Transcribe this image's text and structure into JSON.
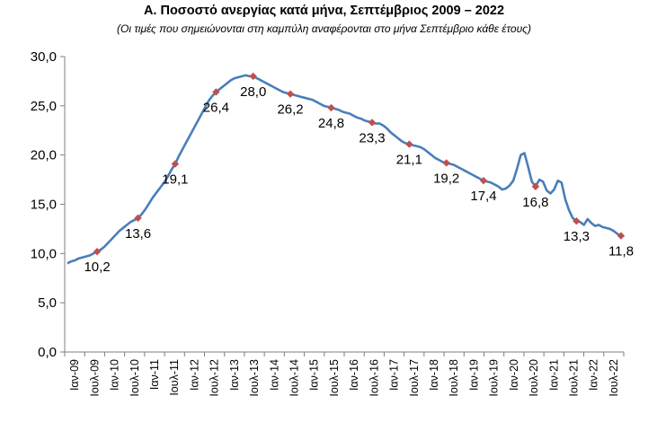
{
  "chart_data": {
    "type": "line",
    "title": "Α. Ποσοστό ανεργίας κατά μήνα, Σεπτέμβριος 2009 – 2022",
    "subtitle": "(Οι τιμές που σημειώνονται στη καμπύλη αναφέρονται στο μήνα Σεπτέμβριο κάθε έτους)",
    "xlabel": "",
    "ylabel": "",
    "ylim": [
      0,
      30
    ],
    "yticks": [
      "0,0",
      "5,0",
      "10,0",
      "15,0",
      "20,0",
      "25,0",
      "30,0"
    ],
    "grid": false,
    "xticks": [
      "Ιαν-09",
      "Ιουλ-09",
      "Ιαν-10",
      "Ιουλ-10",
      "Ιαν-11",
      "Ιουλ-11",
      "Ιαν-12",
      "Ιουλ-12",
      "Ιαν-13",
      "Ιουλ-13",
      "Ιαν-14",
      "Ιουλ-14",
      "Ιαν-15",
      "Ιουλ-15",
      "Ιαν-16",
      "Ιουλ-16",
      "Ιαν-17",
      "Ιουλ-17",
      "Ιαν-18",
      "Ιουλ-18",
      "Ιαν-19",
      "Ιουλ-19",
      "Ιαν-20",
      "Ιουλ-20",
      "Ιαν-21",
      "Ιουλ-21",
      "Ιαν-22",
      "Ιουλ-22"
    ],
    "series": [
      {
        "color": "#4a7ebb",
        "points": [
          [
            0,
            9.0
          ],
          [
            1,
            9.2
          ],
          [
            2,
            9.3
          ],
          [
            3,
            9.5
          ],
          [
            4,
            9.6
          ],
          [
            5,
            9.7
          ],
          [
            6,
            9.8
          ],
          [
            7,
            10.0
          ],
          [
            8,
            10.2
          ],
          [
            9,
            10.4
          ],
          [
            10,
            10.7
          ],
          [
            11,
            11.1
          ],
          [
            12,
            11.5
          ],
          [
            13,
            11.9
          ],
          [
            14,
            12.3
          ],
          [
            15,
            12.6
          ],
          [
            16,
            12.9
          ],
          [
            17,
            13.2
          ],
          [
            18,
            13.4
          ],
          [
            19,
            13.6
          ],
          [
            20,
            14.0
          ],
          [
            21,
            14.5
          ],
          [
            22,
            15.1
          ],
          [
            23,
            15.7
          ],
          [
            24,
            16.2
          ],
          [
            25,
            16.7
          ],
          [
            26,
            17.2
          ],
          [
            27,
            17.8
          ],
          [
            28,
            18.5
          ],
          [
            29,
            19.1
          ],
          [
            30,
            19.9
          ],
          [
            31,
            20.6
          ],
          [
            32,
            21.3
          ],
          [
            33,
            22.0
          ],
          [
            34,
            22.7
          ],
          [
            35,
            23.4
          ],
          [
            36,
            24.1
          ],
          [
            37,
            24.8
          ],
          [
            38,
            25.5
          ],
          [
            39,
            26.0
          ],
          [
            40,
            26.4
          ],
          [
            41,
            26.7
          ],
          [
            42,
            27.0
          ],
          [
            43,
            27.3
          ],
          [
            44,
            27.6
          ],
          [
            45,
            27.8
          ],
          [
            46,
            27.9
          ],
          [
            47,
            28.0
          ],
          [
            48,
            28.1
          ],
          [
            49,
            28.0
          ],
          [
            50,
            28.0
          ],
          [
            51,
            27.8
          ],
          [
            52,
            27.6
          ],
          [
            53,
            27.4
          ],
          [
            54,
            27.2
          ],
          [
            55,
            27.0
          ],
          [
            56,
            26.8
          ],
          [
            57,
            26.6
          ],
          [
            58,
            26.4
          ],
          [
            59,
            26.3
          ],
          [
            60,
            26.2
          ],
          [
            61,
            26.1
          ],
          [
            62,
            26.0
          ],
          [
            63,
            25.9
          ],
          [
            64,
            25.8
          ],
          [
            65,
            25.7
          ],
          [
            66,
            25.6
          ],
          [
            67,
            25.4
          ],
          [
            68,
            25.2
          ],
          [
            69,
            25.0
          ],
          [
            70,
            24.9
          ],
          [
            71,
            24.8
          ],
          [
            72,
            24.7
          ],
          [
            73,
            24.6
          ],
          [
            74,
            24.4
          ],
          [
            75,
            24.3
          ],
          [
            76,
            24.2
          ],
          [
            77,
            24.0
          ],
          [
            78,
            23.8
          ],
          [
            79,
            23.7
          ],
          [
            80,
            23.5
          ],
          [
            81,
            23.4
          ],
          [
            82,
            23.3
          ],
          [
            83,
            23.2
          ],
          [
            84,
            23.2
          ],
          [
            85,
            23.0
          ],
          [
            86,
            22.7
          ],
          [
            87,
            22.3
          ],
          [
            88,
            22.0
          ],
          [
            89,
            21.7
          ],
          [
            90,
            21.4
          ],
          [
            91,
            21.2
          ],
          [
            92,
            21.1
          ],
          [
            93,
            21.0
          ],
          [
            94,
            20.9
          ],
          [
            95,
            20.8
          ],
          [
            96,
            20.6
          ],
          [
            97,
            20.3
          ],
          [
            98,
            20.0
          ],
          [
            99,
            19.7
          ],
          [
            100,
            19.5
          ],
          [
            101,
            19.3
          ],
          [
            102,
            19.2
          ],
          [
            103,
            19.1
          ],
          [
            104,
            19.0
          ],
          [
            105,
            18.8
          ],
          [
            106,
            18.6
          ],
          [
            107,
            18.4
          ],
          [
            108,
            18.2
          ],
          [
            109,
            18.0
          ],
          [
            110,
            17.8
          ],
          [
            111,
            17.6
          ],
          [
            112,
            17.4
          ],
          [
            113,
            17.3
          ],
          [
            114,
            17.2
          ],
          [
            115,
            17.0
          ],
          [
            116,
            16.8
          ],
          [
            117,
            16.5
          ],
          [
            118,
            16.6
          ],
          [
            119,
            16.9
          ],
          [
            120,
            17.4
          ],
          [
            121,
            18.6
          ],
          [
            122,
            20.0
          ],
          [
            123,
            20.2
          ],
          [
            124,
            18.8
          ],
          [
            125,
            17.3
          ],
          [
            126,
            16.8
          ],
          [
            127,
            17.5
          ],
          [
            128,
            17.3
          ],
          [
            129,
            16.4
          ],
          [
            130,
            16.1
          ],
          [
            131,
            16.5
          ],
          [
            132,
            17.4
          ],
          [
            133,
            17.2
          ],
          [
            134,
            15.5
          ],
          [
            135,
            14.4
          ],
          [
            136,
            13.6
          ],
          [
            137,
            13.3
          ],
          [
            138,
            13.2
          ],
          [
            139,
            12.9
          ],
          [
            140,
            13.5
          ],
          [
            141,
            13.1
          ],
          [
            142,
            12.8
          ],
          [
            143,
            12.9
          ],
          [
            144,
            12.7
          ],
          [
            145,
            12.6
          ],
          [
            146,
            12.5
          ],
          [
            147,
            12.3
          ],
          [
            148,
            12.0
          ],
          [
            149,
            11.8
          ]
        ]
      }
    ],
    "labeled_points": [
      {
        "x": 8,
        "y": 10.2,
        "label": "10,2",
        "pos": "below"
      },
      {
        "x": 19,
        "y": 13.6,
        "label": "13,6",
        "pos": "below"
      },
      {
        "x": 29,
        "y": 19.1,
        "label": "19,1",
        "pos": "below"
      },
      {
        "x": 40,
        "y": 26.4,
        "label": "26,4",
        "pos": "below"
      },
      {
        "x": 50,
        "y": 28.0,
        "label": "28,0",
        "pos": "below"
      },
      {
        "x": 60,
        "y": 26.2,
        "label": "26,2",
        "pos": "below"
      },
      {
        "x": 71,
        "y": 24.8,
        "label": "24,8",
        "pos": "below"
      },
      {
        "x": 82,
        "y": 23.3,
        "label": "23,3",
        "pos": "below"
      },
      {
        "x": 92,
        "y": 21.1,
        "label": "21,1",
        "pos": "below"
      },
      {
        "x": 102,
        "y": 19.2,
        "label": "19,2",
        "pos": "below"
      },
      {
        "x": 112,
        "y": 17.4,
        "label": "17,4",
        "pos": "below"
      },
      {
        "x": 126,
        "y": 16.8,
        "label": "16,8",
        "pos": "below"
      },
      {
        "x": 137,
        "y": 13.3,
        "label": "13,3",
        "pos": "below"
      },
      {
        "x": 149,
        "y": 11.8,
        "label": "11,8",
        "pos": "below"
      }
    ],
    "marker_color": "#c0504d"
  }
}
